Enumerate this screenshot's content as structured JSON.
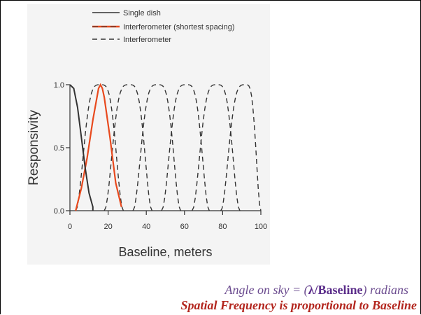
{
  "chart_data": {
    "type": "line",
    "title": "",
    "xlabel": "Baseline, meters",
    "ylabel": "Responsivity",
    "xlim": [
      0,
      100
    ],
    "ylim": [
      0,
      1
    ],
    "x_ticks": [
      "0",
      "20",
      "40",
      "60",
      "80",
      "100"
    ],
    "y_ticks": [
      "0.0",
      "0.5",
      "1.0"
    ],
    "legend_position": "top",
    "series": [
      {
        "name": "Single dish",
        "style": "solid",
        "color": "#333333",
        "x": [
          0,
          2,
          4,
          6,
          8,
          10,
          12,
          12
        ],
        "y": [
          1.0,
          0.97,
          0.82,
          0.58,
          0.34,
          0.14,
          0.03,
          0.0
        ]
      },
      {
        "name": "Interferometer (shortest spacing)",
        "style": "solid",
        "color": "#e8491d",
        "x": [
          3,
          6,
          9,
          12,
          15,
          16,
          17,
          18,
          21,
          24,
          27
        ],
        "y": [
          0.0,
          0.18,
          0.42,
          0.72,
          0.97,
          1.0,
          0.97,
          0.9,
          0.58,
          0.22,
          0.03
        ]
      },
      {
        "name": "Interferometer",
        "style": "dashed",
        "color": "#333333",
        "x": [
          3,
          16,
          28,
          32,
          46,
          59,
          62,
          76,
          89,
          92,
          100
        ],
        "y": [
          0.0,
          1.0,
          0.0,
          0.0,
          1.0,
          0.0,
          0.0,
          1.0,
          0.0,
          0.0,
          0.25
        ],
        "lobes": [
          {
            "center": 16,
            "start": 3,
            "end": 28
          },
          {
            "center": 31,
            "start": 18,
            "end": 43
          },
          {
            "center": 46,
            "start": 33,
            "end": 58
          },
          {
            "center": 61,
            "start": 48,
            "end": 73
          },
          {
            "center": 77,
            "start": 64,
            "end": 89
          },
          {
            "center": 92,
            "start": 79,
            "end": 100
          }
        ]
      }
    ]
  },
  "captions": {
    "line1_prefix": "Angle on sky = (",
    "line1_lambda": "λ/Baseline",
    "line1_suffix": ") radians",
    "line2_term": "Spatial Frequency",
    "line2_middle": " is proportional to ",
    "line2_end": "Baseline"
  }
}
